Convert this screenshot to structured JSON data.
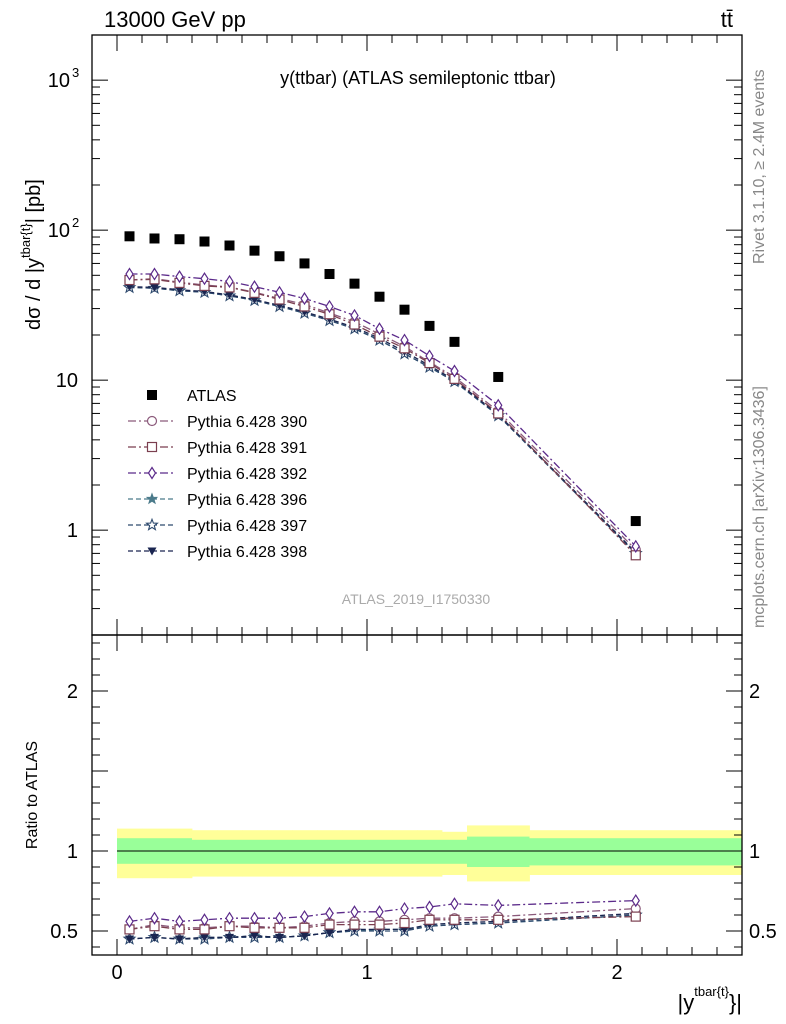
{
  "header": {
    "left": "13000 GeV pp",
    "right": "tt̄"
  },
  "side_text": {
    "rivet": "Rivet 3.1.10, ≥ 2.4M events",
    "mcplots": "mcplots.cern.ch [arXiv:1306.3436]"
  },
  "chart_data": [
    {
      "type": "scatter",
      "title": "y(ttbar) (ATLAS semileptonic ttbar)",
      "watermark": "ATLAS_2019_I1750330",
      "ylabel": "dσ / d |y^{tbar{t}}| [pb]",
      "ylabel_main": "dσ / d |y",
      "ylabel_sup": "tbar{t}",
      "ylabel_tail": "| [pb]",
      "yscale": "log",
      "ylim": [
        0.2,
        2000
      ],
      "xlim": [
        -0.1,
        2.5
      ],
      "y_ticks": [
        {
          "v": 1,
          "label": "1"
        },
        {
          "v": 10,
          "label": "10"
        },
        {
          "v": 100,
          "label": "10",
          "sup": "2"
        },
        {
          "v": 1000,
          "label": "10",
          "sup": "3"
        }
      ],
      "legend_position": "middle-left",
      "x": [
        0.05,
        0.15,
        0.25,
        0.35,
        0.45,
        0.55,
        0.65,
        0.75,
        0.85,
        0.95,
        1.05,
        1.15,
        1.25,
        1.35,
        1.525,
        2.075
      ],
      "series": [
        {
          "name": "ATLAS",
          "color": "#000000",
          "marker": "filled-square",
          "line": "none",
          "values": [
            91,
            88,
            87,
            84,
            79,
            73,
            67,
            60,
            51,
            44,
            36,
            29.5,
            23,
            18,
            10.5,
            1.15
          ]
        },
        {
          "name": "Pythia 6.428 390",
          "color": "#8b5a7b",
          "marker": "open-circle",
          "line": "dashdot",
          "values": [
            46.5,
            47.5,
            45,
            43,
            41.8,
            38.5,
            35,
            32,
            28,
            24.5,
            20.3,
            16.8,
            13.2,
            10.5,
            6.2,
            0.74
          ]
        },
        {
          "name": "Pythia 6.428 391",
          "color": "#7b3f4f",
          "marker": "open-square",
          "line": "dashdot",
          "values": [
            46.5,
            47,
            44.5,
            42.5,
            41.5,
            38.2,
            34.5,
            31,
            27.5,
            23.5,
            19.5,
            16.3,
            13,
            10.2,
            6,
            0.68
          ]
        },
        {
          "name": "Pythia 6.428 392",
          "color": "#5b2a8a",
          "marker": "open-diamond",
          "line": "dashdot",
          "values": [
            51,
            51,
            49,
            47.5,
            45.5,
            42,
            38.5,
            35,
            31,
            27,
            22,
            18.5,
            14.5,
            11.5,
            6.8,
            0.78
          ]
        },
        {
          "name": "Pythia 6.428 396",
          "color": "#4a7a8a",
          "marker": "filled-star",
          "line": "dashed",
          "values": [
            41.5,
            41,
            39.5,
            38.5,
            36.5,
            34,
            31,
            28,
            25,
            22,
            18.5,
            15,
            12.2,
            9.8,
            5.8,
            0.7
          ]
        },
        {
          "name": "Pythia 6.428 397",
          "color": "#2e4a6e",
          "marker": "open-star",
          "line": "dashed",
          "values": [
            41.5,
            41,
            39.5,
            38.5,
            36.5,
            34,
            31,
            28,
            25,
            22,
            18.5,
            15,
            12.2,
            9.8,
            5.8,
            0.7
          ]
        },
        {
          "name": "Pythia 6.428 398",
          "color": "#1a2550",
          "marker": "filled-triangle-down",
          "line": "dashed",
          "values": [
            42,
            41.5,
            40,
            39,
            37,
            34.5,
            31.5,
            28.5,
            25.5,
            22.5,
            19,
            15.5,
            12.5,
            10,
            5.9,
            0.71
          ]
        }
      ]
    },
    {
      "type": "scatter",
      "ylabel": "Ratio to ATLAS",
      "xlabel": "|y^{tbar{t}}|",
      "xlabel_main": "|y",
      "xlabel_sup": "tbar{t}",
      "xlabel_tail": "}|",
      "yscale": "linear",
      "ylim": [
        0.35,
        2.35
      ],
      "xlim": [
        -0.1,
        2.5
      ],
      "y_ticks": [
        {
          "v": 0.5,
          "label": "0.5"
        },
        {
          "v": 1,
          "label": "1"
        },
        {
          "v": 2,
          "label": "2"
        }
      ],
      "x_ticks": [
        {
          "v": 0,
          "label": "0"
        },
        {
          "v": 1,
          "label": "1"
        },
        {
          "v": 2,
          "label": "2"
        }
      ],
      "reference_line": 1,
      "bands": {
        "edges": [
          0.0,
          0.1,
          0.2,
          0.3,
          0.4,
          0.5,
          0.6,
          0.7,
          0.8,
          0.9,
          1.0,
          1.1,
          1.2,
          1.3,
          1.4,
          1.65,
          2.5
        ],
        "outer": [
          [
            0.83,
            1.14
          ],
          [
            0.83,
            1.14
          ],
          [
            0.83,
            1.14
          ],
          [
            0.84,
            1.13
          ],
          [
            0.84,
            1.13
          ],
          [
            0.84,
            1.13
          ],
          [
            0.84,
            1.13
          ],
          [
            0.84,
            1.13
          ],
          [
            0.84,
            1.13
          ],
          [
            0.84,
            1.13
          ],
          [
            0.84,
            1.13
          ],
          [
            0.84,
            1.13
          ],
          [
            0.84,
            1.13
          ],
          [
            0.85,
            1.12
          ],
          [
            0.81,
            1.16
          ],
          [
            0.85,
            1.13
          ]
        ],
        "inner": [
          [
            0.92,
            1.08
          ],
          [
            0.92,
            1.08
          ],
          [
            0.92,
            1.08
          ],
          [
            0.92,
            1.07
          ],
          [
            0.92,
            1.07
          ],
          [
            0.92,
            1.07
          ],
          [
            0.92,
            1.07
          ],
          [
            0.92,
            1.07
          ],
          [
            0.92,
            1.07
          ],
          [
            0.92,
            1.07
          ],
          [
            0.92,
            1.07
          ],
          [
            0.92,
            1.07
          ],
          [
            0.92,
            1.07
          ],
          [
            0.92,
            1.07
          ],
          [
            0.9,
            1.09
          ],
          [
            0.91,
            1.08
          ]
        ],
        "outer_color": "#ffff99",
        "inner_color": "#99ff99"
      },
      "ratios": [
        [
          0.51,
          0.54,
          0.52,
          0.52,
          0.53,
          0.53,
          0.52,
          0.53,
          0.55,
          0.56,
          0.56,
          0.57,
          0.58,
          0.58,
          0.59,
          0.64
        ],
        [
          0.51,
          0.53,
          0.51,
          0.51,
          0.53,
          0.52,
          0.52,
          0.52,
          0.54,
          0.54,
          0.54,
          0.55,
          0.57,
          0.57,
          0.57,
          0.59
        ],
        [
          0.56,
          0.58,
          0.56,
          0.57,
          0.58,
          0.58,
          0.58,
          0.59,
          0.61,
          0.62,
          0.62,
          0.64,
          0.65,
          0.67,
          0.66,
          0.69
        ],
        [
          0.45,
          0.46,
          0.45,
          0.46,
          0.46,
          0.47,
          0.46,
          0.47,
          0.49,
          0.5,
          0.51,
          0.51,
          0.53,
          0.54,
          0.55,
          0.6
        ],
        [
          0.45,
          0.46,
          0.45,
          0.45,
          0.46,
          0.46,
          0.46,
          0.47,
          0.49,
          0.5,
          0.5,
          0.5,
          0.53,
          0.54,
          0.55,
          0.6
        ],
        [
          0.45,
          0.46,
          0.45,
          0.46,
          0.46,
          0.47,
          0.46,
          0.47,
          0.49,
          0.51,
          0.51,
          0.51,
          0.54,
          0.55,
          0.56,
          0.61
        ]
      ]
    }
  ]
}
